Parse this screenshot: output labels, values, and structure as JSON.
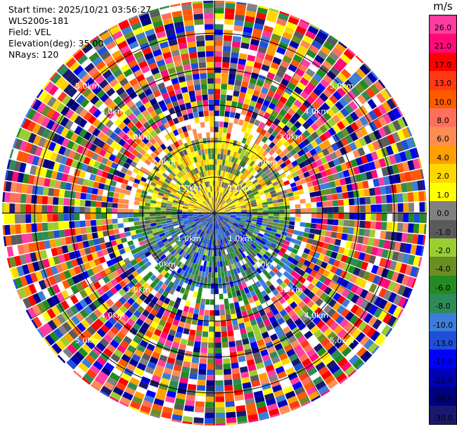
{
  "header": {
    "start_time": "Start time: 2025/10/21 03:56:27",
    "instrument": "WLS200s-181",
    "field": "Field: VEL",
    "elevation": "Elevation(deg): 35.00",
    "nrays": "NRays: 120"
  },
  "colorbar": {
    "unit": "m/s",
    "ticks": [
      "26.0",
      "21.0",
      "17.0",
      "13.0",
      "10.0",
      "8.0",
      "6.0",
      "4.0",
      "2.0",
      "1.0",
      "0.0",
      "-1.0",
      "-2.0",
      "-4.0",
      "-6.0",
      "-8.0",
      "-10.0",
      "-13.0",
      "-17.0",
      "-21.0",
      "-26.0",
      "-30.0"
    ],
    "colors": [
      "#ff3ca0",
      "#ff0a78",
      "#ff0000",
      "#ff3a14",
      "#ff5a00",
      "#ff6f5a",
      "#ff8c52",
      "#ff9f00",
      "#ffd700",
      "#ffff00",
      "#808080",
      "#5a5a5a",
      "#9acd32",
      "#6b8e23",
      "#228b22",
      "#2e8b57",
      "#3b7dd8",
      "#1e4fd8",
      "#0000ff",
      "#0000b4",
      "#000080",
      "#191970"
    ]
  },
  "chart_data": {
    "type": "heatmap",
    "title": "",
    "projection": "polar PPI",
    "n_rays": 120,
    "range_rings_km": [
      1.0,
      2.0,
      3.0,
      4.0,
      5.0
    ],
    "ring_labels": [
      "1.0km",
      "2.0km",
      "3.0km",
      "4.0km",
      "5.0km"
    ],
    "max_range_km": 5.9,
    "field": "VEL",
    "units": "m/s",
    "value_range": [
      -30.0,
      26.0
    ],
    "colorbar_ticks": [
      26.0,
      21.0,
      17.0,
      13.0,
      10.0,
      8.0,
      6.0,
      4.0,
      2.0,
      1.0,
      0.0,
      -1.0,
      -2.0,
      -4.0,
      -6.0,
      -8.0,
      -10.0,
      -13.0,
      -17.0,
      -21.0,
      -26.0,
      -30.0
    ],
    "near_field_pattern": {
      "north_sector_0_2km": "positive 1 to 4 m/s (yellow)",
      "south_sector_0_2km": "negative -6 to -13 m/s (green/blue)",
      "beyond_2km": "noise spanning full range"
    },
    "grid": true
  }
}
